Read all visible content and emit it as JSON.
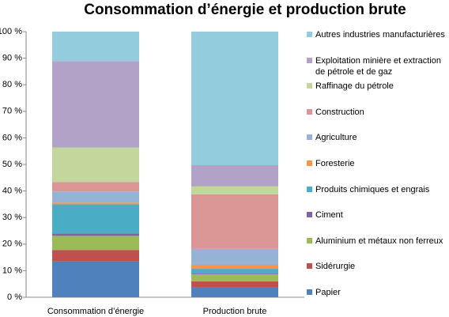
{
  "chart_data": {
    "type": "stacked_bar_100",
    "title": "Consommation d’énergie et production brute",
    "categories": [
      "Consommation d’énergie",
      "Production brute"
    ],
    "series": [
      {
        "name": "Papier",
        "color": "#4f81bd",
        "values": [
          13.5,
          3.6
        ]
      },
      {
        "name": "Sidérurgie",
        "color": "#c0504d",
        "values": [
          4.3,
          2.4
        ]
      },
      {
        "name": "Aluminium et métaux non ferreux",
        "color": "#9bbb59",
        "values": [
          5.3,
          2.6
        ]
      },
      {
        "name": "Ciment",
        "color": "#8064a2",
        "values": [
          0.9,
          0.3
        ]
      },
      {
        "name": "Produits chimiques et engrais",
        "color": "#4bacc6",
        "values": [
          11,
          1.8
        ]
      },
      {
        "name": "Foresterie",
        "color": "#f79646",
        "values": [
          0.6,
          1.5
        ]
      },
      {
        "name": "Agriculture",
        "color": "#95b3d7",
        "values": [
          4.2,
          6
        ]
      },
      {
        "name": "Construction",
        "color": "#d99694",
        "values": [
          3.6,
          20.5
        ]
      },
      {
        "name": "Raffinage du pétrole",
        "color": "#c3d69b",
        "values": [
          13,
          3
        ]
      },
      {
        "name": "Exploitation minière et extraction de pétrole et de gaz",
        "color": "#b2a2c7",
        "values": [
          32.5,
          8
        ]
      },
      {
        "name": "Autres industries manufacturières",
        "color": "#93cddd",
        "values": [
          11.1,
          50.3
        ]
      }
    ],
    "ylim": [
      0,
      100
    ],
    "yticks": [
      {
        "value": 0,
        "label": "0 %"
      },
      {
        "value": 10,
        "label": "10 %"
      },
      {
        "value": 20,
        "label": "20 %"
      },
      {
        "value": 30,
        "label": "30 %"
      },
      {
        "value": 40,
        "label": "40 %"
      },
      {
        "value": 50,
        "label": "50 %"
      },
      {
        "value": 60,
        "label": "60 %"
      },
      {
        "value": 70,
        "label": "70 %"
      },
      {
        "value": 80,
        "label": "80 %"
      },
      {
        "value": 90,
        "label": "90 %"
      },
      {
        "value": 100,
        "label": "100 %"
      }
    ],
    "legend": "right"
  }
}
